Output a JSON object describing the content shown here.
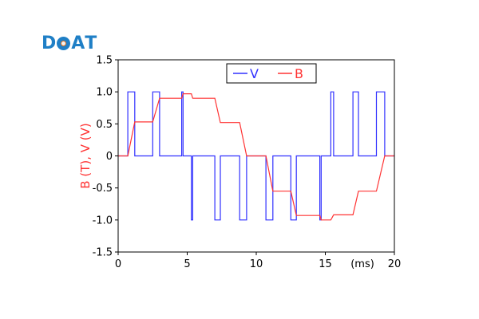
{
  "logo": {
    "text": "DAT",
    "letters": [
      "D",
      "A",
      "T"
    ]
  },
  "chart_data": {
    "type": "line",
    "title": "",
    "xlabel": "",
    "x_unit_annotation": "(ms)",
    "ylabel": "B (T), V (V)",
    "xlim": [
      0,
      20
    ],
    "ylim": [
      -1.5,
      1.5
    ],
    "xticks": [
      0,
      5,
      10,
      15,
      20
    ],
    "yticks": [
      -1.5,
      -1.0,
      -0.5,
      0,
      0.5,
      1.0,
      1.5
    ],
    "xtick_labels": [
      "0",
      "5",
      "10",
      "15"
    ],
    "ytick_labels": [
      "-1.5",
      "-1.0",
      "-0.5",
      "0",
      "0.5",
      "1.0",
      "1.5"
    ],
    "legend_placement": "top-center",
    "grid": false,
    "series": [
      {
        "name": "V",
        "color": "#3030ff",
        "step": true,
        "points": [
          [
            0,
            0
          ],
          [
            0.7,
            0
          ],
          [
            0.7,
            1
          ],
          [
            1.2,
            1
          ],
          [
            1.2,
            0
          ],
          [
            2.5,
            0
          ],
          [
            2.5,
            1
          ],
          [
            3.0,
            1
          ],
          [
            3.0,
            0
          ],
          [
            4.6,
            0
          ],
          [
            4.6,
            1
          ],
          [
            4.7,
            1
          ],
          [
            4.7,
            0
          ],
          [
            5.3,
            0
          ],
          [
            5.3,
            -1
          ],
          [
            5.4,
            -1
          ],
          [
            5.4,
            0
          ],
          [
            7.0,
            0
          ],
          [
            7.0,
            -1
          ],
          [
            7.4,
            -1
          ],
          [
            7.4,
            0
          ],
          [
            8.8,
            0
          ],
          [
            8.8,
            -1
          ],
          [
            9.3,
            -1
          ],
          [
            9.3,
            0
          ],
          [
            10.7,
            0
          ],
          [
            10.7,
            -1
          ],
          [
            11.2,
            -1
          ],
          [
            11.2,
            0
          ],
          [
            12.5,
            0
          ],
          [
            12.5,
            -1
          ],
          [
            12.9,
            -1
          ],
          [
            12.9,
            0
          ],
          [
            14.6,
            0
          ],
          [
            14.6,
            -1
          ],
          [
            14.7,
            -1
          ],
          [
            14.7,
            0
          ],
          [
            15.4,
            0
          ],
          [
            15.4,
            1
          ],
          [
            15.6,
            1
          ],
          [
            15.6,
            0
          ],
          [
            17.0,
            0
          ],
          [
            17.0,
            1
          ],
          [
            17.4,
            1
          ],
          [
            17.4,
            0
          ],
          [
            18.7,
            0
          ],
          [
            18.7,
            1
          ],
          [
            19.3,
            1
          ],
          [
            19.3,
            0
          ],
          [
            20,
            0
          ]
        ]
      },
      {
        "name": "B",
        "color": "#ff3333",
        "points": [
          [
            0,
            0
          ],
          [
            0.7,
            0
          ],
          [
            1.2,
            0.53
          ],
          [
            2.5,
            0.53
          ],
          [
            3.0,
            0.9
          ],
          [
            4.6,
            0.9
          ],
          [
            4.7,
            0.97
          ],
          [
            5.3,
            0.97
          ],
          [
            5.4,
            0.9
          ],
          [
            7.0,
            0.9
          ],
          [
            7.4,
            0.52
          ],
          [
            8.8,
            0.52
          ],
          [
            9.3,
            0
          ],
          [
            10.7,
            0
          ],
          [
            11.2,
            -0.55
          ],
          [
            12.5,
            -0.55
          ],
          [
            12.9,
            -0.93
          ],
          [
            14.6,
            -0.93
          ],
          [
            14.7,
            -1.0
          ],
          [
            15.4,
            -1.0
          ],
          [
            15.6,
            -0.92
          ],
          [
            17.0,
            -0.92
          ],
          [
            17.4,
            -0.55
          ],
          [
            18.7,
            -0.55
          ],
          [
            19.3,
            0
          ],
          [
            20,
            0
          ]
        ]
      }
    ]
  }
}
